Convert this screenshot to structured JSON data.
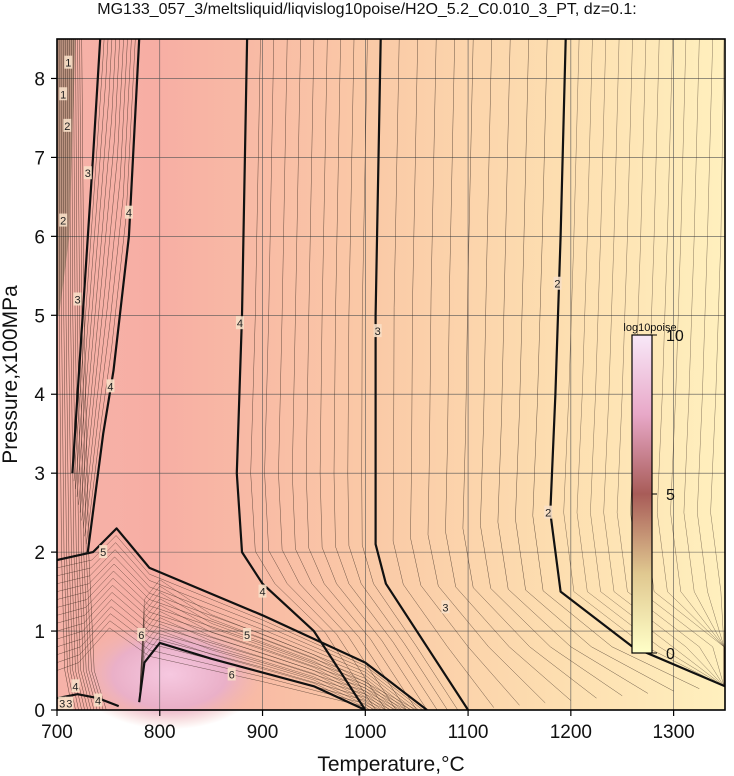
{
  "chart_data": {
    "type": "heatmap",
    "title": "MG133_057_3/meltsliquid/liqvislog10poise/H2O_5.2_C0.010_3_PT, dz=0.1:",
    "xlabel": "Temperature,°C",
    "ylabel": "Pressure,x100MPa",
    "xlim": [
      700,
      1350
    ],
    "ylim": [
      0,
      8.5
    ],
    "xticks": [
      700,
      800,
      900,
      1000,
      1100,
      1200,
      1300
    ],
    "yticks": [
      0,
      1,
      2,
      3,
      4,
      5,
      6,
      7,
      8
    ],
    "grid": true,
    "colorbar": {
      "title": "log10poise",
      "ticks": [
        0,
        5,
        10
      ],
      "range": [
        0,
        10
      ],
      "colors": [
        "#ffffc8",
        "#d0a080",
        "#a05050",
        "#f0c0e0",
        "#ffffff"
      ]
    },
    "contour_interval": 0.1,
    "major_contours": [
      {
        "level": 2,
        "points": [
          [
            1350,
            0.3
          ],
          [
            1260,
            0.8
          ],
          [
            1190,
            1.5
          ],
          [
            1180,
            2.5
          ],
          [
            1185,
            4.0
          ],
          [
            1190,
            6.0
          ],
          [
            1195,
            8.5
          ]
        ]
      },
      {
        "level": 3,
        "points": [
          [
            1100,
            0.0
          ],
          [
            1060,
            0.8
          ],
          [
            1020,
            1.6
          ],
          [
            1010,
            2.1
          ],
          [
            1010,
            3.0
          ],
          [
            1010,
            5.0
          ],
          [
            1015,
            8.5
          ]
        ]
      },
      {
        "level": 4,
        "points": [
          [
            1000,
            0.0
          ],
          [
            950,
            1.0
          ],
          [
            900,
            1.6
          ],
          [
            880,
            2.0
          ],
          [
            875,
            3.0
          ],
          [
            880,
            5.0
          ],
          [
            885,
            8.5
          ]
        ]
      },
      {
        "level": 4,
        "points": [
          [
            730,
            2.0
          ],
          [
            745,
            3.5
          ],
          [
            755,
            4.3
          ],
          [
            770,
            6.0
          ],
          [
            780,
            8.5
          ]
        ]
      },
      {
        "level": 3,
        "points": [
          [
            715,
            3.0
          ],
          [
            725,
            5.0
          ],
          [
            735,
            7.0
          ],
          [
            742,
            8.5
          ]
        ]
      },
      {
        "level": 5,
        "points": [
          [
            700,
            1.9
          ],
          [
            735,
            2.0
          ],
          [
            758,
            2.3
          ],
          [
            790,
            1.8
          ],
          [
            900,
            1.2
          ],
          [
            1000,
            0.6
          ],
          [
            1060,
            0.0
          ]
        ]
      },
      {
        "level": 6,
        "points": [
          [
            780,
            0.1
          ],
          [
            785,
            0.6
          ],
          [
            800,
            0.85
          ],
          [
            850,
            0.65
          ],
          [
            950,
            0.3
          ],
          [
            1000,
            0.0
          ]
        ]
      },
      {
        "level": 5,
        "points": [
          [
            700,
            0.15
          ],
          [
            720,
            0.2
          ],
          [
            740,
            0.15
          ],
          [
            760,
            0.05
          ]
        ]
      }
    ],
    "contour_labels": [
      {
        "text": "2",
        "x": 1187,
        "y": 5.4
      },
      {
        "text": "2",
        "x": 1178,
        "y": 2.5
      },
      {
        "text": "3",
        "x": 1012,
        "y": 4.8
      },
      {
        "text": "3",
        "x": 1078,
        "y": 1.3
      },
      {
        "text": "4",
        "x": 878,
        "y": 4.9
      },
      {
        "text": "4",
        "x": 900,
        "y": 1.5
      },
      {
        "text": "4",
        "x": 770,
        "y": 6.3
      },
      {
        "text": "4",
        "x": 752,
        "y": 4.1
      },
      {
        "text": "3",
        "x": 730,
        "y": 6.8
      },
      {
        "text": "3",
        "x": 720,
        "y": 5.2
      },
      {
        "text": "2",
        "x": 706,
        "y": 6.2
      },
      {
        "text": "2",
        "x": 710,
        "y": 7.4
      },
      {
        "text": "1",
        "x": 706,
        "y": 7.8
      },
      {
        "text": "1",
        "x": 711,
        "y": 8.2
      },
      {
        "text": "5",
        "x": 745,
        "y": 2.0
      },
      {
        "text": "5",
        "x": 885,
        "y": 0.95
      },
      {
        "text": "6",
        "x": 782,
        "y": 0.95
      },
      {
        "text": "6",
        "x": 870,
        "y": 0.45
      },
      {
        "text": "4",
        "x": 718,
        "y": 0.3
      },
      {
        "text": "3",
        "x": 705,
        "y": 0.08
      },
      {
        "text": "3",
        "x": 712,
        "y": 0.08
      },
      {
        "text": "4",
        "x": 740,
        "y": 0.12
      }
    ]
  }
}
